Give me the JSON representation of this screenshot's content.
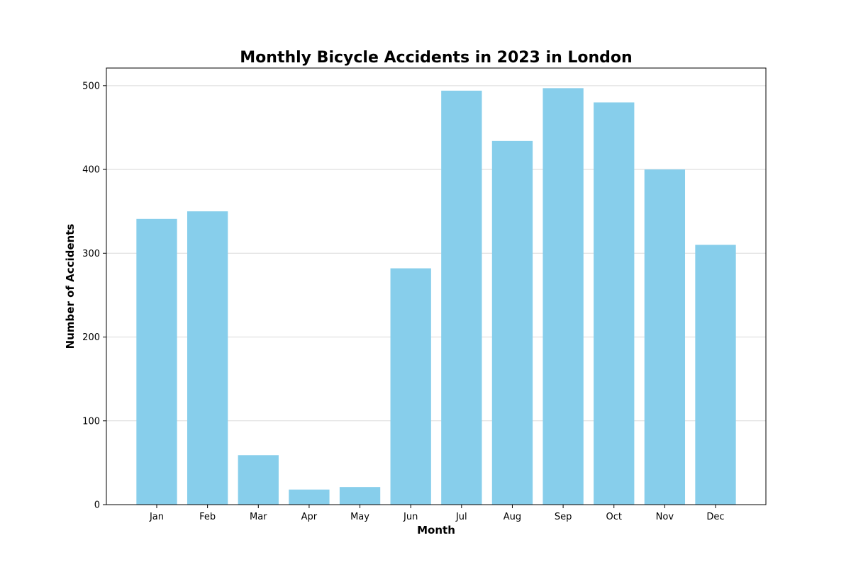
{
  "chart_data": {
    "type": "bar",
    "title": "Monthly Bicycle Accidents in 2023 in London",
    "xlabel": "Month",
    "ylabel": "Number of Accidents",
    "categories": [
      "Jan",
      "Feb",
      "Mar",
      "Apr",
      "May",
      "Jun",
      "Jul",
      "Aug",
      "Sep",
      "Oct",
      "Nov",
      "Dec"
    ],
    "values": [
      341,
      350,
      59,
      18,
      21,
      282,
      494,
      434,
      497,
      480,
      400,
      310
    ],
    "ylim": [
      0,
      521
    ],
    "yticks": [
      0,
      100,
      200,
      300,
      400,
      500
    ],
    "ytick_labels": [
      "0",
      "100",
      "200",
      "300",
      "400",
      "500"
    ],
    "grid": "y-major",
    "legend": "none",
    "bar_color": "#87ceeb",
    "grid_color": "#d9d9d9"
  }
}
